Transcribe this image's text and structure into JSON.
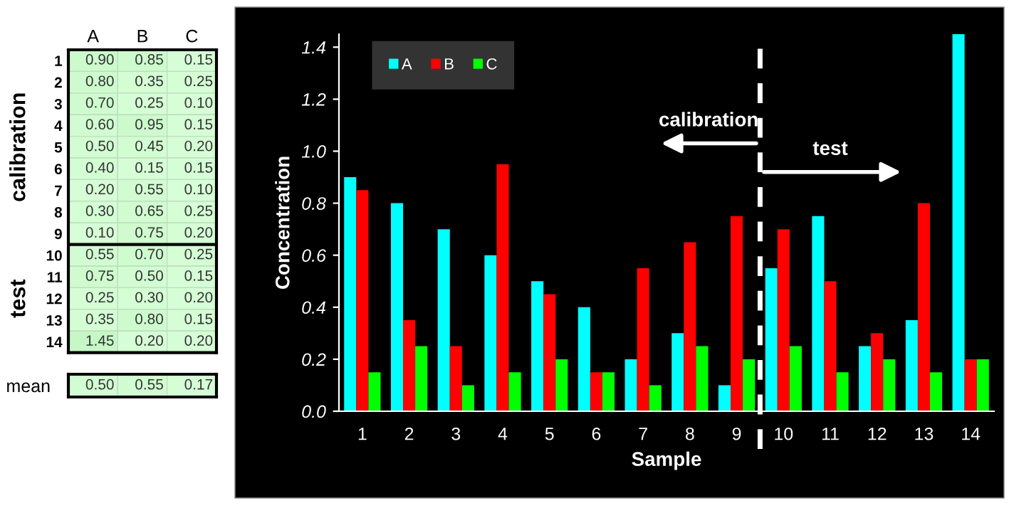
{
  "chart_data": [
    {
      "type": "heatmap",
      "categories": [
        "A",
        "B",
        "C"
      ],
      "y_categories": [
        "1",
        "2",
        "3",
        "4",
        "5",
        "6",
        "7",
        "8",
        "9",
        "10",
        "11",
        "12",
        "13",
        "14"
      ],
      "cells": [
        [
          0.9,
          0.85,
          0.15
        ],
        [
          0.8,
          0.35,
          0.25
        ],
        [
          0.7,
          0.25,
          0.1
        ],
        [
          0.6,
          0.95,
          0.15
        ],
        [
          0.5,
          0.45,
          0.2
        ],
        [
          0.4,
          0.15,
          0.15
        ],
        [
          0.2,
          0.55,
          0.1
        ],
        [
          0.3,
          0.65,
          0.25
        ],
        [
          0.1,
          0.75,
          0.2
        ],
        [
          0.55,
          0.7,
          0.25
        ],
        [
          0.75,
          0.5,
          0.15
        ],
        [
          0.25,
          0.3,
          0.2
        ],
        [
          0.35,
          0.8,
          0.15
        ],
        [
          1.45,
          0.2,
          0.2
        ]
      ],
      "cell_labels": [
        [
          "0.90",
          "0.85",
          "0.15"
        ],
        [
          "0.80",
          "0.35",
          "0.25"
        ],
        [
          "0.70",
          "0.25",
          "0.10"
        ],
        [
          "0.60",
          "0.95",
          "0.15"
        ],
        [
          "0.50",
          "0.45",
          "0.20"
        ],
        [
          "0.40",
          "0.15",
          "0.15"
        ],
        [
          "0.20",
          "0.55",
          "0.10"
        ],
        [
          "0.30",
          "0.65",
          "0.25"
        ],
        [
          "0.10",
          "0.75",
          "0.20"
        ],
        [
          "0.55",
          "0.70",
          "0.25"
        ],
        [
          "0.75",
          "0.50",
          "0.15"
        ],
        [
          "0.25",
          "0.30",
          "0.20"
        ],
        [
          "0.35",
          "0.80",
          "0.15"
        ],
        [
          "1.45",
          "0.20",
          "0.20"
        ]
      ],
      "annotations": [
        "calibration",
        "test"
      ]
    },
    {
      "type": "heatmap",
      "categories": [
        null,
        null,
        null
      ],
      "y_categories": [
        "mean"
      ],
      "cells": [
        [
          0.5,
          0.55,
          0.17
        ]
      ],
      "cell_labels": [
        [
          "0.50",
          "0.55",
          "0.17"
        ]
      ]
    },
    {
      "type": "bar",
      "xlabel": "Sample",
      "ylabel": "Concentration",
      "x": [
        1,
        2,
        3,
        4,
        5,
        6,
        7,
        8,
        9,
        10,
        11,
        12,
        13,
        14
      ],
      "xlim": [
        0.5,
        14.5
      ],
      "xticks": [
        1,
        2,
        3,
        4,
        5,
        6,
        7,
        8,
        9,
        10,
        11,
        12,
        13,
        14
      ],
      "ylim": [
        0,
        1.45
      ],
      "yticks": [
        {
          "value": 0,
          "label": "0.0"
        },
        {
          "value": 0.2,
          "label": "0.2"
        },
        {
          "value": 0.4,
          "label": "0.4"
        },
        {
          "value": 0.6,
          "label": "0.6"
        },
        {
          "value": 0.8,
          "label": "0.8"
        },
        {
          "value": 1.0,
          "label": "1.0"
        },
        {
          "value": 1.2,
          "label": "1.2"
        },
        {
          "value": 1.4,
          "label": "1.4"
        }
      ],
      "series": [
        {
          "name": "A",
          "color": "#00ffff",
          "values": [
            0.9,
            0.8,
            0.7,
            0.6,
            0.5,
            0.4,
            0.2,
            0.3,
            0.1,
            0.55,
            0.75,
            0.25,
            0.35,
            1.45
          ]
        },
        {
          "name": "B",
          "color": "#ff0000",
          "values": [
            0.85,
            0.35,
            0.25,
            0.95,
            0.45,
            0.15,
            0.55,
            0.65,
            0.75,
            0.7,
            0.5,
            0.3,
            0.8,
            0.2
          ]
        },
        {
          "name": "C",
          "color": "#00ff00",
          "values": [
            0.15,
            0.25,
            0.1,
            0.15,
            0.2,
            0.15,
            0.1,
            0.25,
            0.2,
            0.25,
            0.15,
            0.2,
            0.15,
            0.2
          ]
        }
      ],
      "ref_lines": [
        {
          "axis": "x",
          "value": 9.5,
          "color": "#ffffff",
          "line_style": "dashed"
        }
      ],
      "annotations": [
        "calibration",
        "test"
      ],
      "legend": "top left",
      "grid": false
    }
  ]
}
